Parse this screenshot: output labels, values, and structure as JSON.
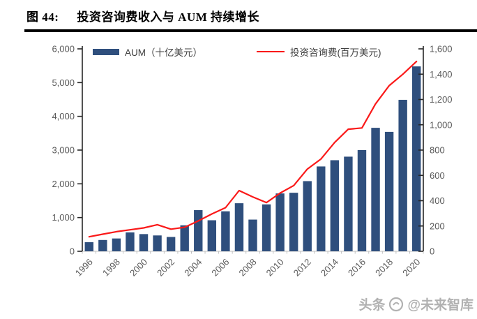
{
  "header": {
    "figure_label": "图 44:",
    "title": "投资咨询费收入与 AUM 持续增长"
  },
  "watermark": {
    "prefix": "头条",
    "handle": "@未来智库",
    "logo": "zhiku-circle-logo"
  },
  "colors": {
    "bar": "#2f4f7d",
    "line": "#fa1919",
    "axis": "#262626",
    "tick_label": "#595959",
    "minor_tick": "#bfbfbf",
    "rule": "#000000",
    "watermark": "#a9a9a9"
  },
  "chart_data": {
    "type": "bar+line combo",
    "categories": [
      1996,
      1997,
      1998,
      1999,
      2000,
      2001,
      2002,
      2003,
      2004,
      2005,
      2006,
      2007,
      2008,
      2009,
      2010,
      2011,
      2012,
      2013,
      2014,
      2015,
      2016,
      2017,
      2018,
      2019,
      2020
    ],
    "series": [
      {
        "name": "AUM（十亿美元）",
        "type": "bar",
        "axis": "left",
        "color": "#2f4f7d",
        "values": [
          270,
          335,
          380,
          560,
          510,
          470,
          425,
          770,
          1220,
          920,
          1185,
          1425,
          940,
          1390,
          1715,
          1735,
          2080,
          2515,
          2700,
          2805,
          3000,
          3660,
          3540,
          4490,
          5480
        ]
      },
      {
        "name": "投资咨询费(百万美元)",
        "type": "line",
        "axis": "right",
        "color": "#fa1919",
        "values": [
          115,
          135,
          155,
          170,
          185,
          210,
          175,
          190,
          240,
          295,
          345,
          480,
          430,
          385,
          460,
          520,
          650,
          730,
          860,
          965,
          975,
          1165,
          1310,
          1400,
          1500
        ]
      }
    ],
    "left_axis": {
      "min": 0,
      "max": 6000,
      "step": 1000,
      "tick_labels": [
        "0",
        "1,000",
        "2,000",
        "3,000",
        "4,000",
        "5,000",
        "6,000"
      ]
    },
    "right_axis": {
      "min": 0,
      "max": 1600,
      "step": 200,
      "tick_labels": [
        "0",
        "200",
        "400",
        "600",
        "800",
        "1,000",
        "1,200",
        "1,400",
        "1,600"
      ]
    },
    "x_tick_labels": [
      "1996",
      "1998",
      "2000",
      "2002",
      "2004",
      "2006",
      "2008",
      "2010",
      "2012",
      "2014",
      "2016",
      "2018",
      "2020"
    ],
    "grid": false,
    "legend_position": "top-inside"
  }
}
